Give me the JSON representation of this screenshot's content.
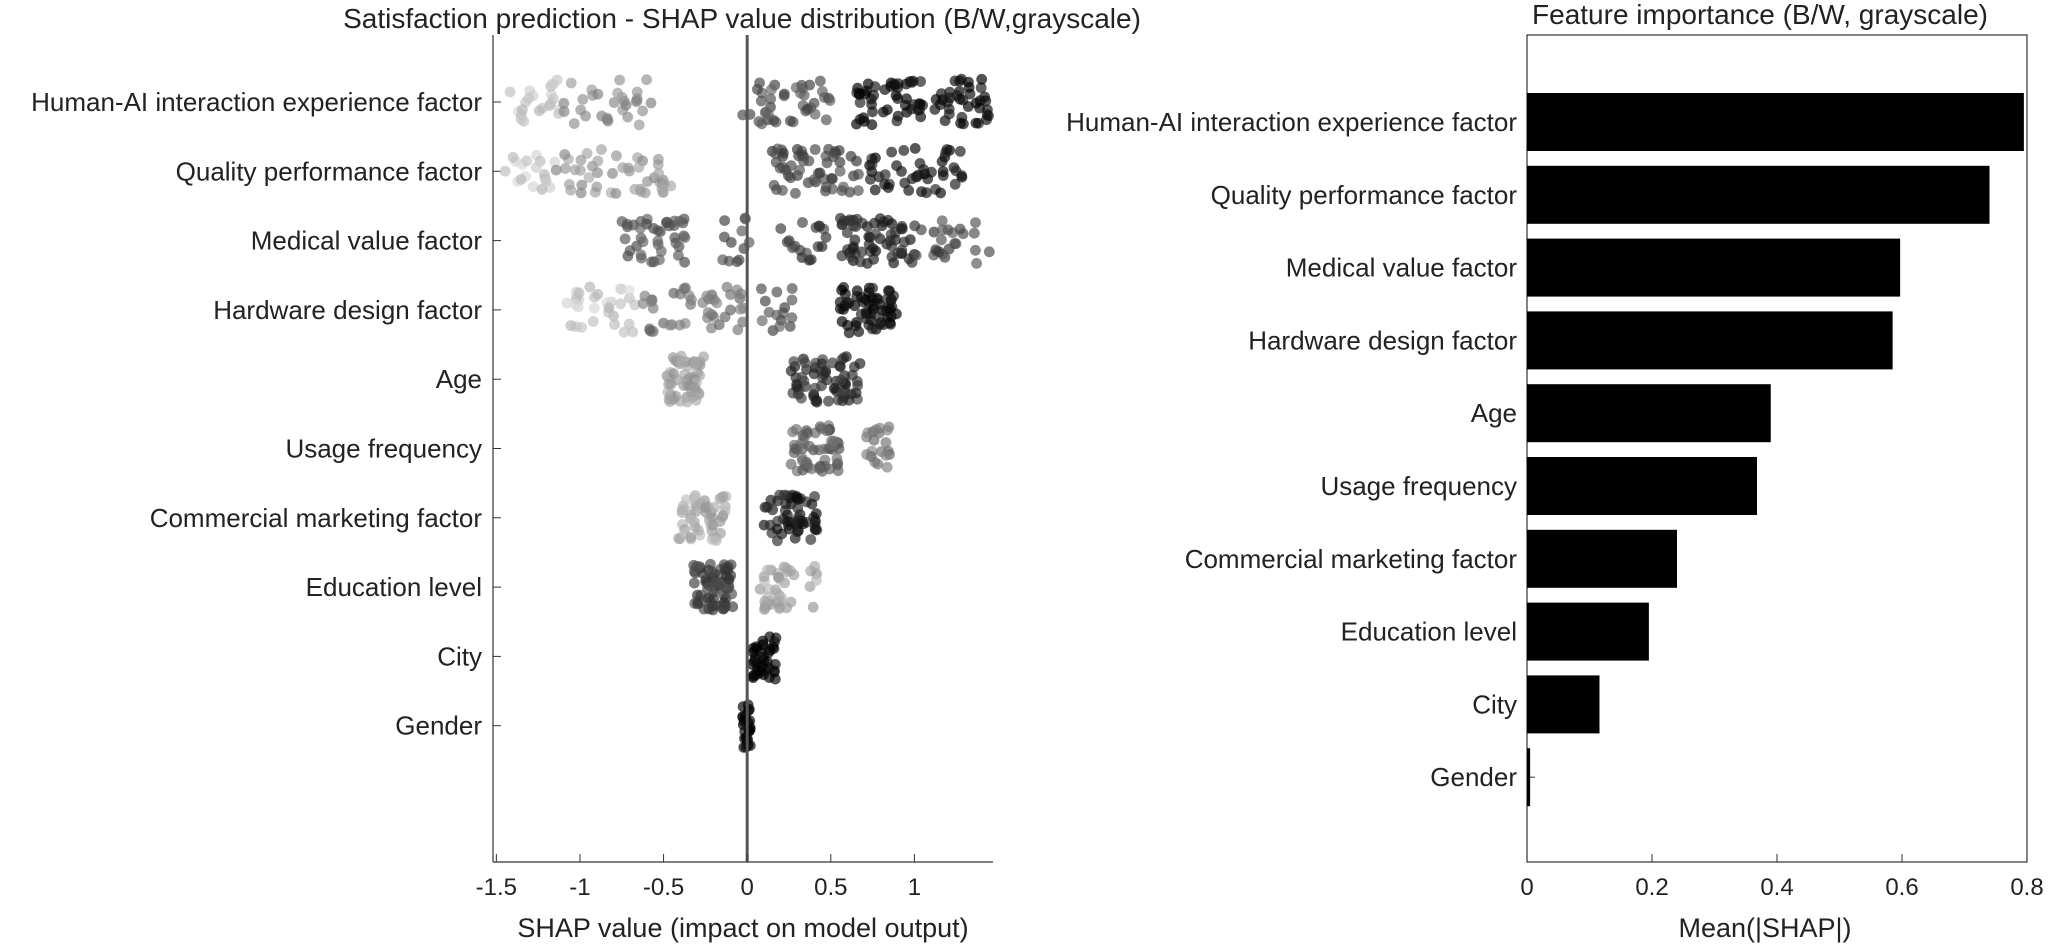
{
  "chart_data": [
    {
      "type": "scatter",
      "title": "Satisfaction prediction - SHAP value distribution (B/W,grayscale)",
      "xlabel": "SHAP value (impact on model output)",
      "ylabel": "",
      "xlim": [
        -1.52,
        1.47
      ],
      "xticks": [
        -1.5,
        -1,
        -0.5,
        0,
        0.5,
        1
      ],
      "xtick_labels": [
        "-1.5",
        "-1",
        "-0.5",
        "0",
        "0.5",
        "1"
      ],
      "grid": false,
      "zero_line": true,
      "features": [
        {
          "name": "Human-AI interaction experience factor",
          "clusters": [
            {
              "x0": -1.42,
              "x1": -1.12,
              "gray": 0.85,
              "n": 22
            },
            {
              "x0": -1.1,
              "x1": -0.55,
              "gray": 0.6,
              "n": 30
            },
            {
              "x0": -0.05,
              "x1": 0.5,
              "gray": 0.35,
              "n": 40
            },
            {
              "x0": 0.65,
              "x1": 1.45,
              "gray": 0.05,
              "n": 85
            }
          ]
        },
        {
          "name": "Quality performance factor",
          "clusters": [
            {
              "x0": -1.45,
              "x1": -1.15,
              "gray": 0.85,
              "n": 18
            },
            {
              "x0": -1.15,
              "x1": -0.45,
              "gray": 0.65,
              "n": 45
            },
            {
              "x0": 0.15,
              "x1": 0.7,
              "gray": 0.3,
              "n": 55
            },
            {
              "x0": 0.7,
              "x1": 1.3,
              "gray": 0.08,
              "n": 45
            }
          ]
        },
        {
          "name": "Medical value factor",
          "clusters": [
            {
              "x0": -0.75,
              "x1": -0.35,
              "gray": 0.35,
              "n": 40
            },
            {
              "x0": -0.15,
              "x1": 0.02,
              "gray": 0.35,
              "n": 12
            },
            {
              "x0": 0.2,
              "x1": 0.48,
              "gray": 0.25,
              "n": 18
            },
            {
              "x0": 0.55,
              "x1": 1.0,
              "gray": 0.15,
              "n": 60
            },
            {
              "x0": 1.0,
              "x1": 1.45,
              "gray": 0.3,
              "n": 25
            }
          ]
        },
        {
          "name": "Hardware design factor",
          "clusters": [
            {
              "x0": -1.08,
              "x1": -0.65,
              "gray": 0.85,
              "n": 30
            },
            {
              "x0": -0.65,
              "x1": -0.02,
              "gray": 0.5,
              "n": 45
            },
            {
              "x0": 0.08,
              "x1": 0.28,
              "gray": 0.35,
              "n": 15
            },
            {
              "x0": 0.55,
              "x1": 0.9,
              "gray": 0.05,
              "n": 60
            }
          ]
        },
        {
          "name": "Age",
          "clusters": [
            {
              "x0": -0.48,
              "x1": -0.26,
              "gray": 0.68,
              "n": 60
            },
            {
              "x0": 0.26,
              "x1": 0.68,
              "gray": 0.2,
              "n": 65
            }
          ]
        },
        {
          "name": "Usage frequency",
          "clusters": [
            {
              "x0": 0.26,
              "x1": 0.55,
              "gray": 0.4,
              "n": 55
            },
            {
              "x0": 0.7,
              "x1": 0.86,
              "gray": 0.5,
              "n": 20
            }
          ]
        },
        {
          "name": "Commercial marketing factor",
          "clusters": [
            {
              "x0": -0.42,
              "x1": -0.12,
              "gray": 0.72,
              "n": 55
            },
            {
              "x0": 0.1,
              "x1": 0.42,
              "gray": 0.12,
              "n": 55
            }
          ]
        },
        {
          "name": "Education level",
          "clusters": [
            {
              "x0": -0.32,
              "x1": -0.08,
              "gray": 0.28,
              "n": 70
            },
            {
              "x0": 0.07,
              "x1": 0.28,
              "gray": 0.72,
              "n": 35
            },
            {
              "x0": 0.36,
              "x1": 0.45,
              "gray": 0.72,
              "n": 6
            }
          ]
        },
        {
          "name": "City",
          "clusters": [
            {
              "x0": 0.03,
              "x1": 0.18,
              "gray": 0.0,
              "n": 40
            }
          ]
        },
        {
          "name": "Gender",
          "clusters": [
            {
              "x0": -0.03,
              "x1": 0.02,
              "gray": 0.0,
              "n": 25
            }
          ]
        }
      ]
    },
    {
      "type": "bar",
      "orientation": "horizontal",
      "title": "Feature importance (B/W, grayscale)",
      "xlabel": "Mean(|SHAP|)",
      "ylabel": "",
      "xlim": [
        0,
        0.8
      ],
      "xticks": [
        0,
        0.2,
        0.4,
        0.6,
        0.8
      ],
      "xtick_labels": [
        "0",
        "0.2",
        "0.4",
        "0.6",
        "0.8"
      ],
      "bar_color": "#000000",
      "categories": [
        "Human-AI interaction experience factor",
        "Quality performance factor",
        "Medical value factor",
        "Hardware design factor",
        "Age",
        "Usage frequency",
        "Commercial marketing factor",
        "Education level",
        "City",
        "Gender"
      ],
      "values": [
        0.795,
        0.74,
        0.597,
        0.585,
        0.39,
        0.368,
        0.24,
        0.195,
        0.116,
        0.005
      ]
    }
  ]
}
